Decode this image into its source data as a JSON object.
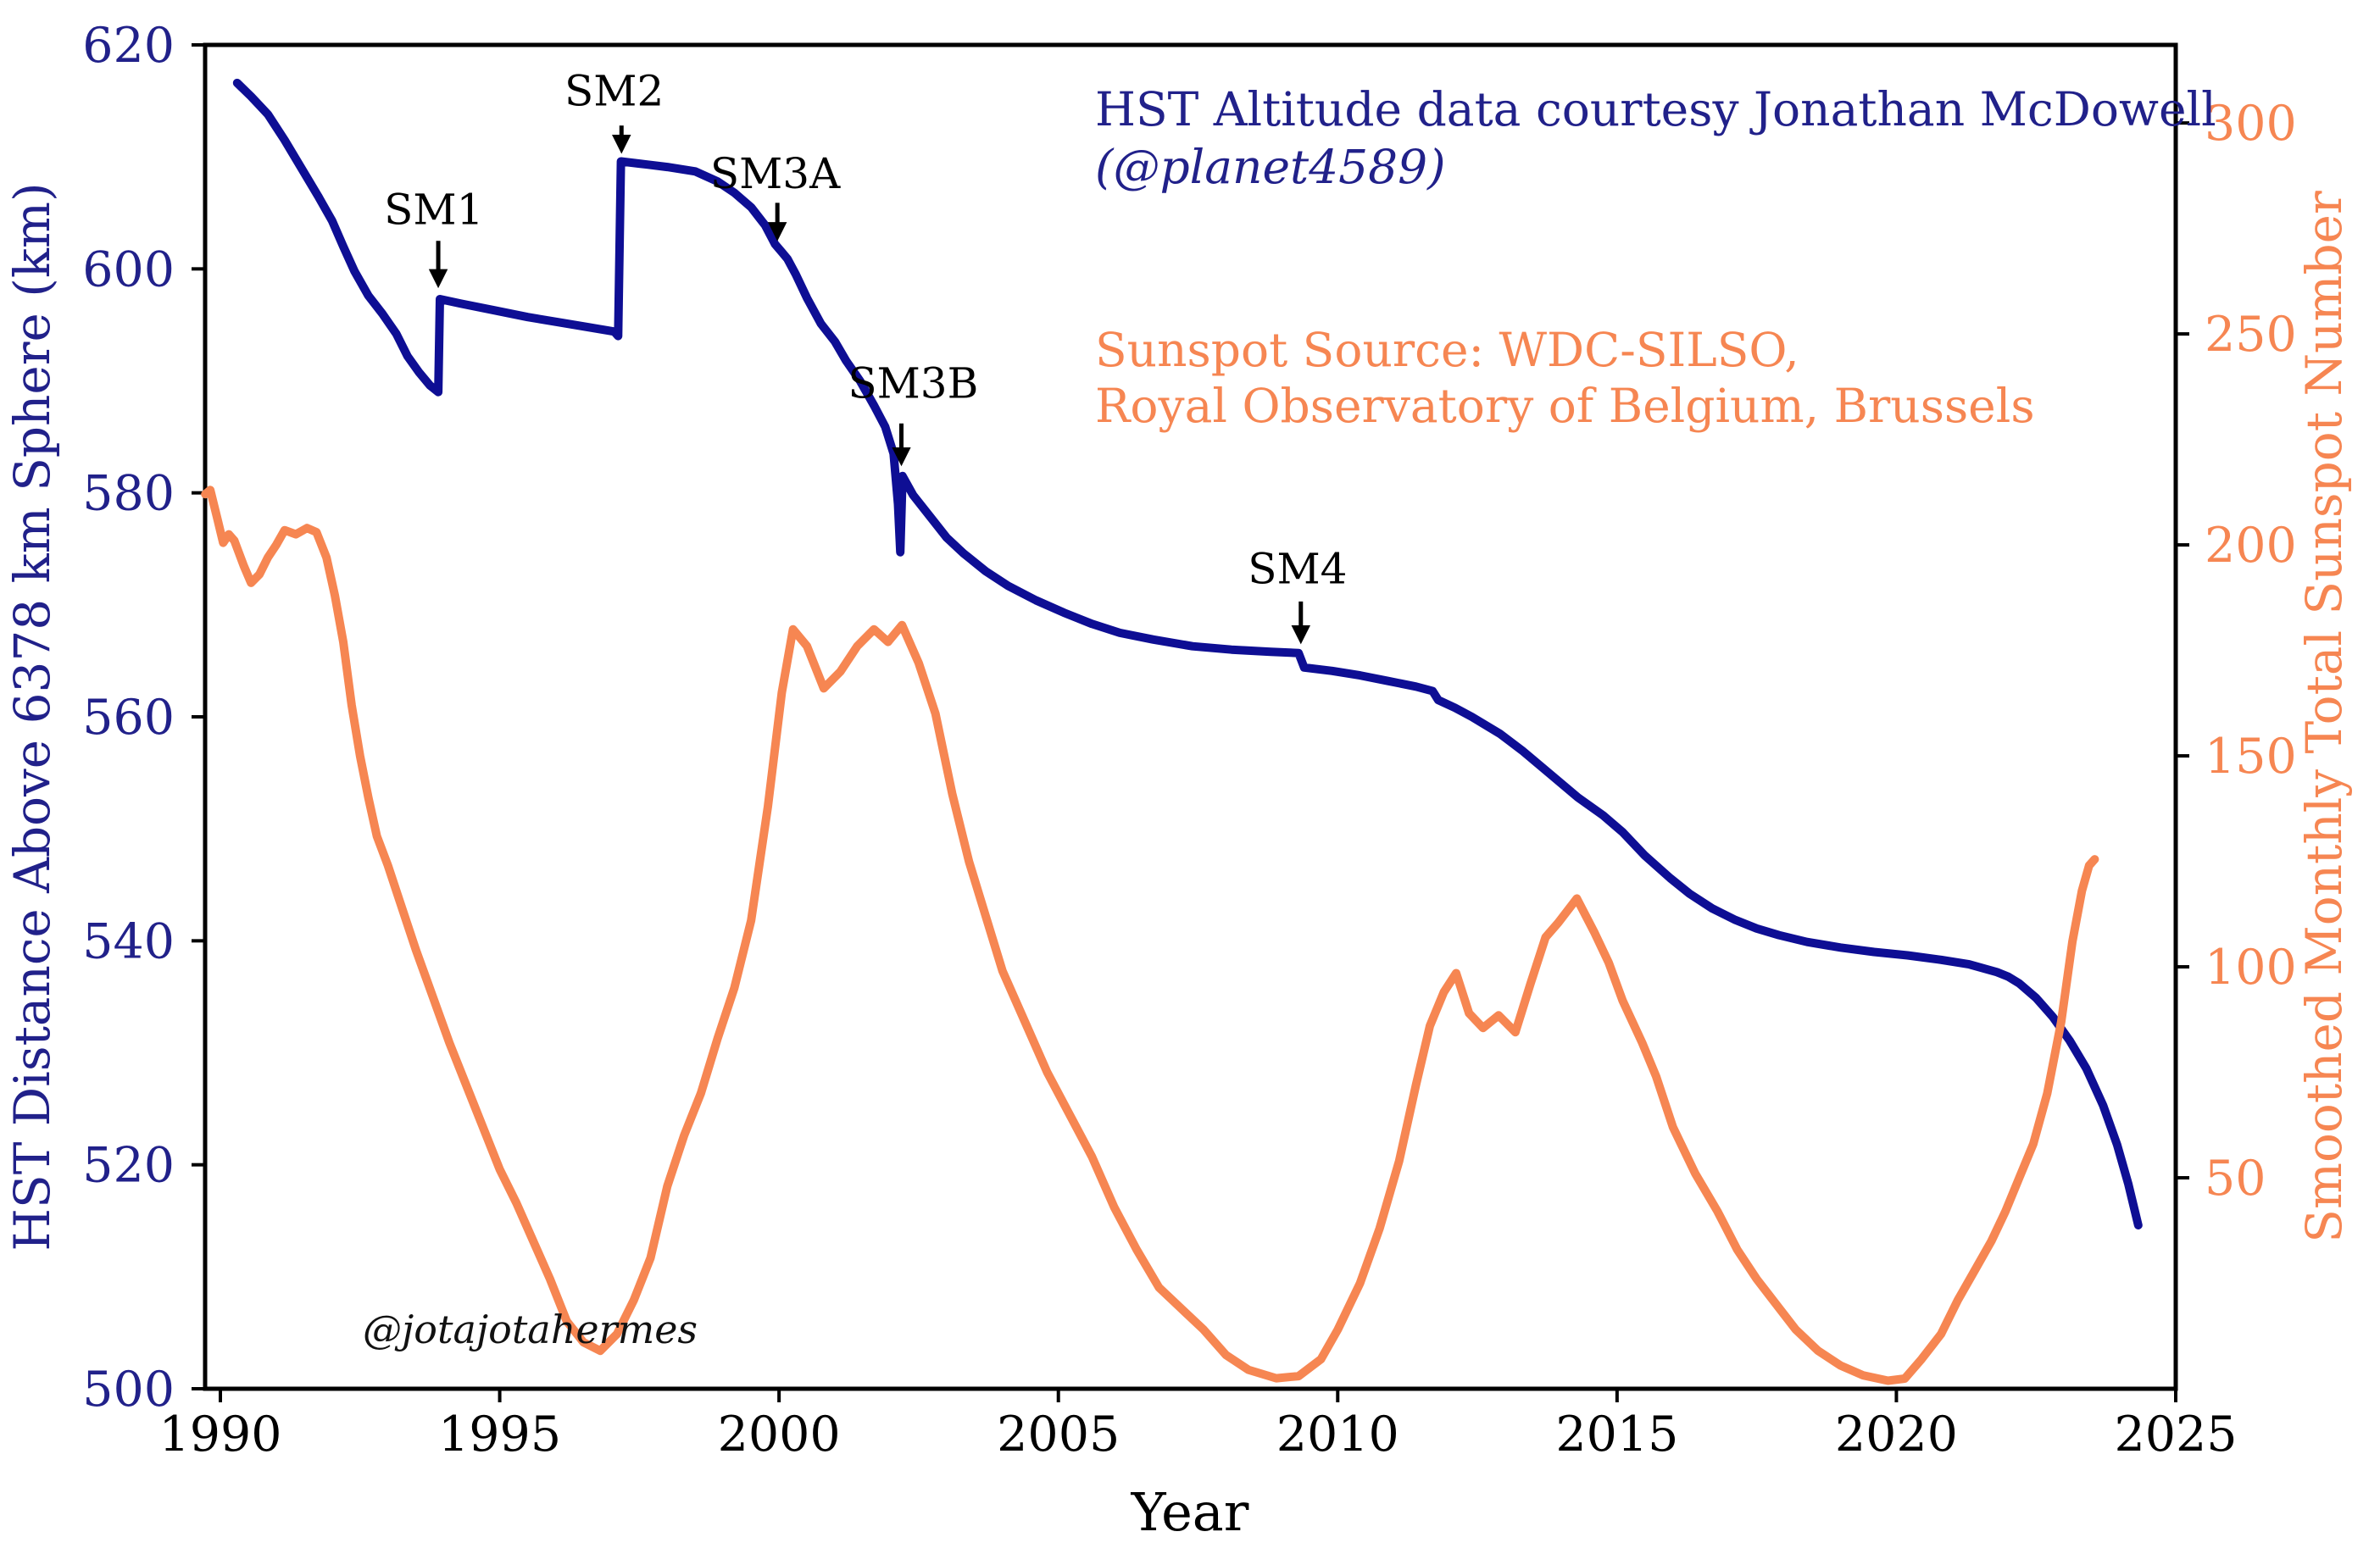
{
  "figure": {
    "watermark": "@jotajotahermes",
    "credits": {
      "hst_line1": "HST Altitude data courtesy Jonathan McDowell",
      "hst_line2": "(@planet4589)",
      "sunspot_line1": "Sunspot Source: WDC-SILSO,",
      "sunspot_line2": "Royal Observatory of Belgium, Brussels"
    }
  },
  "colors": {
    "background": "#ffffff",
    "axis_black": "#000000",
    "hst_navy_text": "#21218a",
    "hst_blue_line": "#0e0e94",
    "sunspot_orange": "#f68652"
  },
  "chart_data": {
    "type": "line",
    "title": "",
    "xlabel": "Year",
    "grid": false,
    "legend": "none",
    "x_range": [
      1989.727,
      2025
    ],
    "x_ticks": [
      1990,
      1995,
      2000,
      2005,
      2010,
      2015,
      2020,
      2025
    ],
    "left_axis": {
      "label": "HST Distance Above 6378 km Sphere (km)",
      "range": [
        500,
        620
      ],
      "ticks": [
        500,
        520,
        540,
        560,
        580,
        600,
        620
      ],
      "color": "#21218a"
    },
    "right_axis": {
      "label": "Smoothed Monthly Total Sunspot Number",
      "range": [
        0,
        318.5
      ],
      "ticks": [
        50,
        100,
        150,
        200,
        250,
        300
      ],
      "color": "#f68652"
    },
    "series": [
      {
        "name": "HST altitude above 6378 km sphere (km)",
        "axis": "left",
        "color": "#0e0e94",
        "points": [
          [
            1990.3,
            616.6
          ],
          [
            1990.55,
            615.4
          ],
          [
            1990.85,
            613.8
          ],
          [
            1991.15,
            611.5
          ],
          [
            1991.45,
            609.0
          ],
          [
            1991.75,
            606.5
          ],
          [
            1992.0,
            604.3
          ],
          [
            1992.2,
            602.0
          ],
          [
            1992.4,
            599.8
          ],
          [
            1992.65,
            597.6
          ],
          [
            1992.9,
            596.0
          ],
          [
            1993.15,
            594.2
          ],
          [
            1993.35,
            592.2
          ],
          [
            1993.55,
            590.8
          ],
          [
            1993.75,
            589.6
          ],
          [
            1993.9,
            589.0
          ],
          [
            1993.93,
            597.3
          ],
          [
            1994.3,
            596.9
          ],
          [
            1994.9,
            596.3
          ],
          [
            1995.5,
            595.7
          ],
          [
            1996.1,
            595.2
          ],
          [
            1996.7,
            594.7
          ],
          [
            1997.05,
            594.4
          ],
          [
            1997.12,
            594.0
          ],
          [
            1997.17,
            609.6
          ],
          [
            1997.5,
            609.4
          ],
          [
            1998.0,
            609.1
          ],
          [
            1998.5,
            608.7
          ],
          [
            1998.9,
            607.8
          ],
          [
            1999.2,
            606.8
          ],
          [
            1999.5,
            605.5
          ],
          [
            1999.75,
            603.9
          ],
          [
            1999.93,
            602.2
          ],
          [
            2000.05,
            601.5
          ],
          [
            2000.15,
            600.9
          ],
          [
            2000.3,
            599.5
          ],
          [
            2000.5,
            597.4
          ],
          [
            2000.75,
            595.1
          ],
          [
            2001.0,
            593.5
          ],
          [
            2001.2,
            591.8
          ],
          [
            2001.45,
            590.0
          ],
          [
            2001.7,
            587.8
          ],
          [
            2001.9,
            585.9
          ],
          [
            2002.05,
            583.5
          ],
          [
            2002.13,
            579.0
          ],
          [
            2002.17,
            574.7
          ],
          [
            2002.21,
            581.5
          ],
          [
            2002.4,
            579.8
          ],
          [
            2002.7,
            577.9
          ],
          [
            2003.0,
            576.0
          ],
          [
            2003.3,
            574.6
          ],
          [
            2003.7,
            573.0
          ],
          [
            2004.1,
            571.7
          ],
          [
            2004.6,
            570.4
          ],
          [
            2005.1,
            569.3
          ],
          [
            2005.6,
            568.3
          ],
          [
            2006.1,
            567.5
          ],
          [
            2006.7,
            566.9
          ],
          [
            2007.4,
            566.3
          ],
          [
            2008.1,
            566.0
          ],
          [
            2008.8,
            565.8
          ],
          [
            2009.3,
            565.7
          ],
          [
            2009.4,
            564.4
          ],
          [
            2009.9,
            564.1
          ],
          [
            2010.4,
            563.7
          ],
          [
            2010.9,
            563.2
          ],
          [
            2011.4,
            562.7
          ],
          [
            2011.7,
            562.3
          ],
          [
            2011.8,
            561.5
          ],
          [
            2012.1,
            560.8
          ],
          [
            2012.4,
            560.0
          ],
          [
            2012.9,
            558.5
          ],
          [
            2013.3,
            557.0
          ],
          [
            2013.8,
            554.9
          ],
          [
            2014.3,
            552.8
          ],
          [
            2014.75,
            551.2
          ],
          [
            2015.1,
            549.7
          ],
          [
            2015.5,
            547.6
          ],
          [
            2015.95,
            545.6
          ],
          [
            2016.3,
            544.2
          ],
          [
            2016.7,
            542.9
          ],
          [
            2017.1,
            541.9
          ],
          [
            2017.5,
            541.1
          ],
          [
            2017.9,
            540.5
          ],
          [
            2018.4,
            539.9
          ],
          [
            2019.0,
            539.4
          ],
          [
            2019.6,
            539.0
          ],
          [
            2020.2,
            538.7
          ],
          [
            2020.8,
            538.3
          ],
          [
            2021.3,
            537.9
          ],
          [
            2021.8,
            537.2
          ],
          [
            2022.0,
            536.8
          ],
          [
            2022.2,
            536.2
          ],
          [
            2022.5,
            534.9
          ],
          [
            2022.8,
            533.2
          ],
          [
            2023.1,
            531.1
          ],
          [
            2023.4,
            528.6
          ],
          [
            2023.7,
            525.3
          ],
          [
            2023.95,
            521.8
          ],
          [
            2024.15,
            518.3
          ],
          [
            2024.33,
            514.6
          ]
        ]
      },
      {
        "name": "Smoothed monthly total sunspot number",
        "axis": "right",
        "color": "#f68652",
        "points": [
          [
            1989.73,
            212.0
          ],
          [
            1989.82,
            213.0
          ],
          [
            1989.95,
            206.0
          ],
          [
            1990.05,
            200.5
          ],
          [
            1990.15,
            202.5
          ],
          [
            1990.25,
            201.0
          ],
          [
            1990.42,
            195.0
          ],
          [
            1990.55,
            191.0
          ],
          [
            1990.7,
            193.0
          ],
          [
            1990.85,
            197.0
          ],
          [
            1991.0,
            200.0
          ],
          [
            1991.15,
            203.5
          ],
          [
            1991.35,
            202.5
          ],
          [
            1991.55,
            204.0
          ],
          [
            1991.72,
            203.0
          ],
          [
            1991.9,
            197.0
          ],
          [
            1992.05,
            188.0
          ],
          [
            1992.2,
            177.0
          ],
          [
            1992.35,
            162.0
          ],
          [
            1992.5,
            150.0
          ],
          [
            1992.65,
            140.0
          ],
          [
            1992.8,
            131.0
          ],
          [
            1993.0,
            124.0
          ],
          [
            1993.2,
            116.0
          ],
          [
            1993.5,
            104.0
          ],
          [
            1993.8,
            93.0
          ],
          [
            1994.1,
            82.0
          ],
          [
            1994.4,
            72.0
          ],
          [
            1994.7,
            62.0
          ],
          [
            1995.0,
            52.0
          ],
          [
            1995.3,
            44.0
          ],
          [
            1995.6,
            35.0
          ],
          [
            1995.9,
            26.0
          ],
          [
            1996.2,
            16.0
          ],
          [
            1996.5,
            11.0
          ],
          [
            1996.8,
            9.0
          ],
          [
            1997.1,
            13.0
          ],
          [
            1997.4,
            21.0
          ],
          [
            1997.7,
            31.0
          ],
          [
            1998.0,
            48.0
          ],
          [
            1998.3,
            60.0
          ],
          [
            1998.6,
            70.0
          ],
          [
            1998.9,
            83.0
          ],
          [
            1999.2,
            95.0
          ],
          [
            1999.5,
            111.0
          ],
          [
            1999.8,
            138.0
          ],
          [
            2000.05,
            165.0
          ],
          [
            2000.25,
            180.0
          ],
          [
            2000.5,
            176.0
          ],
          [
            2000.8,
            166.0
          ],
          [
            2001.1,
            170.0
          ],
          [
            2001.4,
            176.0
          ],
          [
            2001.7,
            180.0
          ],
          [
            2001.95,
            177.0
          ],
          [
            2002.2,
            181.0
          ],
          [
            2002.5,
            172.0
          ],
          [
            2002.8,
            160.0
          ],
          [
            2003.1,
            141.0
          ],
          [
            2003.4,
            125.0
          ],
          [
            2003.7,
            112.0
          ],
          [
            2004.0,
            99.0
          ],
          [
            2004.4,
            87.0
          ],
          [
            2004.8,
            75.0
          ],
          [
            2005.2,
            65.0
          ],
          [
            2005.6,
            55.0
          ],
          [
            2006.0,
            43.0
          ],
          [
            2006.4,
            33.0
          ],
          [
            2006.8,
            24.0
          ],
          [
            2007.2,
            19.0
          ],
          [
            2007.6,
            14.0
          ],
          [
            2008.0,
            8.0
          ],
          [
            2008.4,
            4.5
          ],
          [
            2008.9,
            2.5
          ],
          [
            2009.3,
            3.0
          ],
          [
            2009.7,
            7.0
          ],
          [
            2010.0,
            14.0
          ],
          [
            2010.4,
            25.0
          ],
          [
            2010.75,
            38.0
          ],
          [
            2011.1,
            54.0
          ],
          [
            2011.4,
            72.0
          ],
          [
            2011.65,
            86.0
          ],
          [
            2011.9,
            94.0
          ],
          [
            2012.12,
            98.5
          ],
          [
            2012.35,
            89.0
          ],
          [
            2012.6,
            85.5
          ],
          [
            2012.88,
            88.5
          ],
          [
            2013.18,
            84.5
          ],
          [
            2013.45,
            96.0
          ],
          [
            2013.72,
            107.0
          ],
          [
            2013.95,
            110.5
          ],
          [
            2014.28,
            116.2
          ],
          [
            2014.6,
            108.0
          ],
          [
            2014.85,
            101.0
          ],
          [
            2015.1,
            92.0
          ],
          [
            2015.45,
            82.0
          ],
          [
            2015.7,
            74.0
          ],
          [
            2016.0,
            62.0
          ],
          [
            2016.4,
            51.0
          ],
          [
            2016.8,
            42.0
          ],
          [
            2017.15,
            33.0
          ],
          [
            2017.5,
            26.0
          ],
          [
            2017.85,
            20.0
          ],
          [
            2018.2,
            14.0
          ],
          [
            2018.6,
            9.0
          ],
          [
            2019.0,
            5.5
          ],
          [
            2019.4,
            3.2
          ],
          [
            2019.85,
            1.9
          ],
          [
            2020.15,
            2.4
          ],
          [
            2020.45,
            7.0
          ],
          [
            2020.8,
            13.0
          ],
          [
            2021.1,
            21.0
          ],
          [
            2021.4,
            28.0
          ],
          [
            2021.7,
            35.0
          ],
          [
            2021.95,
            42.0
          ],
          [
            2022.2,
            50.0
          ],
          [
            2022.45,
            58.0
          ],
          [
            2022.7,
            70.0
          ],
          [
            2022.95,
            87.0
          ],
          [
            2023.15,
            106.0
          ],
          [
            2023.32,
            118.0
          ],
          [
            2023.45,
            124.0
          ],
          [
            2023.55,
            125.5
          ]
        ]
      }
    ],
    "annotations": [
      {
        "label": "SM1",
        "text_year": 1993.82,
        "text_alt": 604.0,
        "arrow_year": 1993.9,
        "arrow_from_alt": 602.5,
        "arrow_to_alt": 598.7
      },
      {
        "label": "SM2",
        "text_year": 1997.05,
        "text_alt": 614.6,
        "arrow_year": 1997.18,
        "arrow_from_alt": 612.8,
        "arrow_to_alt": 610.7
      },
      {
        "label": "SM3A",
        "text_year": 1999.93,
        "text_alt": 607.2,
        "arrow_year": 1999.97,
        "arrow_from_alt": 605.9,
        "arrow_to_alt": 602.9
      },
      {
        "label": "SM3B",
        "text_year": 2002.4,
        "text_alt": 588.5,
        "arrow_year": 2002.19,
        "arrow_from_alt": 586.2,
        "arrow_to_alt": 582.8
      },
      {
        "label": "SM4",
        "text_year": 2009.28,
        "text_alt": 571.9,
        "arrow_year": 2009.34,
        "arrow_from_alt": 570.3,
        "arrow_to_alt": 566.9
      }
    ]
  }
}
